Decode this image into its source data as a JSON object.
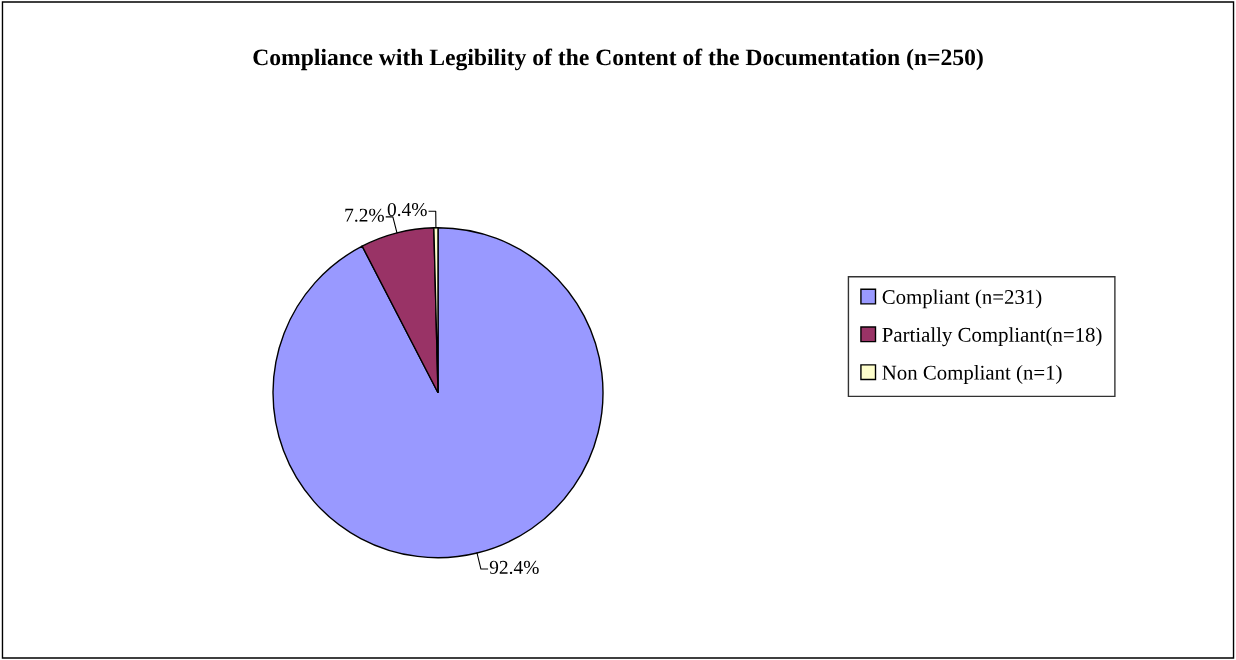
{
  "chart_data": {
    "type": "pie",
    "title": "Compliance with Legibility of the Content of the Documentation (n=250)",
    "categories": [
      "Compliant (n=231)",
      "Partially Compliant(n=18)",
      "Non Compliant (n=1)"
    ],
    "values": [
      92.4,
      7.2,
      0.4
    ],
    "colors": [
      "#9999ff",
      "#993366",
      "#ffffcc"
    ],
    "value_labels": [
      "92.4%",
      "7.2%",
      "0.4%"
    ],
    "legend": "right"
  }
}
